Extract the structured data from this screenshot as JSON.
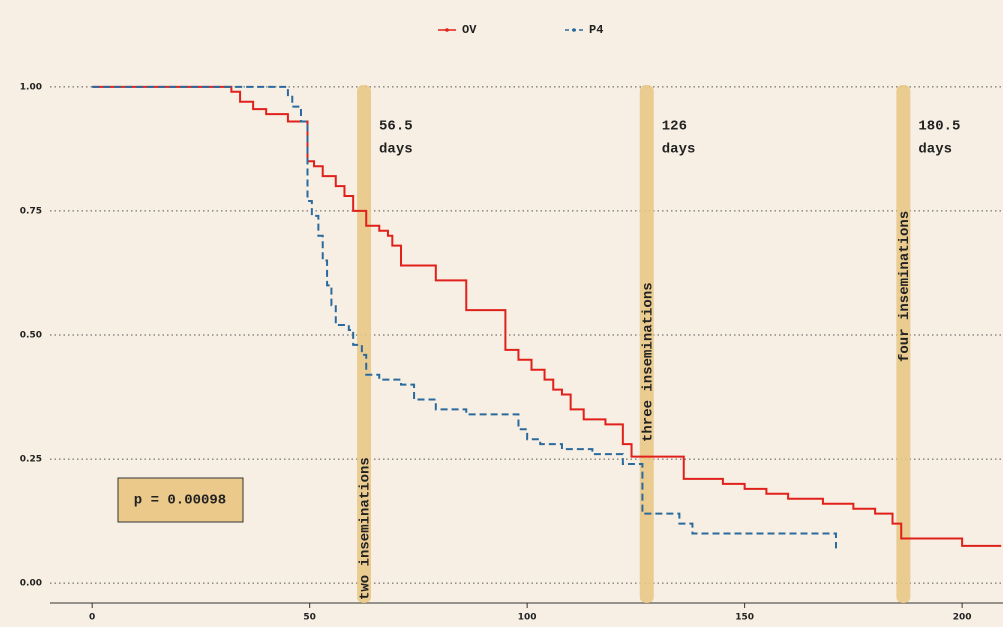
{
  "chart_data": {
    "type": "step",
    "legend_position": "top",
    "grid": true,
    "xlim": [
      -9.7,
      209.4
    ],
    "ylim": [
      -0.04,
      1.05
    ],
    "xticks": [
      0,
      50,
      100,
      150,
      200
    ],
    "yticks": [
      {
        "value": 0,
        "label": "0.00"
      },
      {
        "value": 0.25,
        "label": "0.25"
      },
      {
        "value": 0.5,
        "label": "0.50"
      },
      {
        "value": 0.75,
        "label": "0.75"
      },
      {
        "value": 1,
        "label": "1.00"
      }
    ],
    "series": [
      {
        "name": "OV",
        "color": "#e0201b",
        "dash": false,
        "x": [
          0,
          32,
          34,
          37,
          40,
          45,
          49.5,
          51,
          53,
          56,
          58,
          60,
          63,
          66,
          68,
          69,
          71,
          79,
          86,
          95,
          98,
          101,
          104,
          106,
          108,
          110,
          113,
          118,
          122,
          124,
          136,
          145,
          150,
          155,
          160,
          168,
          175,
          180,
          184,
          186,
          200,
          209
        ],
        "values": [
          1.0,
          0.99,
          0.97,
          0.955,
          0.945,
          0.93,
          0.85,
          0.84,
          0.82,
          0.8,
          0.78,
          0.75,
          0.72,
          0.71,
          0.7,
          0.68,
          0.64,
          0.61,
          0.55,
          0.47,
          0.45,
          0.43,
          0.41,
          0.39,
          0.38,
          0.35,
          0.33,
          0.32,
          0.28,
          0.255,
          0.21,
          0.2,
          0.19,
          0.18,
          0.17,
          0.16,
          0.15,
          0.14,
          0.12,
          0.09,
          0.075,
          0.075
        ]
      },
      {
        "name": "P4",
        "color": "#2a6a9e",
        "dash": true,
        "x": [
          0,
          45,
          46,
          48,
          49.5,
          50.5,
          52,
          53,
          54,
          55,
          56,
          59,
          60,
          62,
          63,
          66,
          71,
          74,
          79,
          86,
          98,
          100,
          103,
          108,
          115,
          122,
          126.5,
          135,
          138,
          171,
          171
        ],
        "values": [
          1.0,
          0.98,
          0.96,
          0.93,
          0.77,
          0.74,
          0.7,
          0.65,
          0.6,
          0.56,
          0.52,
          0.51,
          0.48,
          0.46,
          0.42,
          0.41,
          0.4,
          0.37,
          0.35,
          0.34,
          0.31,
          0.29,
          0.28,
          0.27,
          0.26,
          0.24,
          0.14,
          0.12,
          0.1,
          0.1,
          0.07
        ]
      }
    ],
    "annotations": [
      {
        "x": 62.5,
        "label": [
          "56.5",
          "days"
        ],
        "text": "two inseminations"
      },
      {
        "x": 127.5,
        "label": [
          "126",
          "days"
        ],
        "text": "three inseminations"
      },
      {
        "x": 186.5,
        "label": [
          "180.5",
          "days"
        ],
        "text": "four inseminations"
      }
    ],
    "p_value": "p = 0.00098"
  }
}
